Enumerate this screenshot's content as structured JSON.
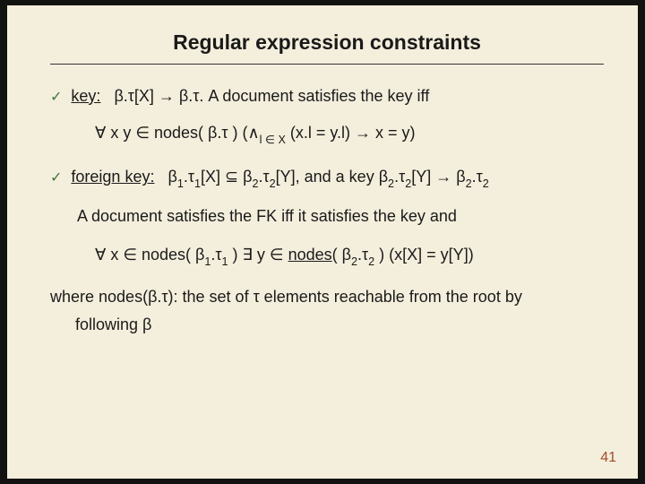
{
  "slide": {
    "title": "Regular expression constraints",
    "page_number": "41",
    "bullet1": {
      "label": "key:",
      "expr": "β.τ[X]  →  β.τ.   A document satisfies the key iff"
    },
    "formula1": "∀ x  y  ∈ nodes( β.τ )   (∧",
    "formula1_sub": "l ∈ X",
    "formula1_tail": "  (x.l = y.l) →  x = y)",
    "bullet2": {
      "label": "foreign key:",
      "expr_a": "β",
      "expr_a2": "1",
      "expr_b": ".τ",
      "expr_b2": "1",
      "expr_c": "[X]  ⊆  β",
      "expr_c2": "2",
      "expr_d": ".τ",
      "expr_d2": "2",
      "expr_e": "[Y], and a key  β",
      "expr_e2": "2",
      "expr_f": ".τ",
      "expr_f2": "2",
      "expr_g": "[Y]  →  β",
      "expr_g2": "2",
      "expr_h": ".τ",
      "expr_h2": "2"
    },
    "sub2": "A document satisfies the FK  iff  it satisfies the key and",
    "formula2_a": "∀ x ∈ nodes(  β",
    "formula2_a2": "1",
    "formula2_b": ".τ",
    "formula2_b2": "1",
    "formula2_c": " )  ∃ y  ∈ ",
    "formula2_d": "nodes",
    "formula2_e": "(  β",
    "formula2_e2": "2",
    "formula2_f": ".τ",
    "formula2_f2": "2",
    "formula2_g": " )  (x[X] = y[Y])",
    "note1": "where nodes(β.τ): the set of τ elements reachable from the root by",
    "note2": "following β"
  }
}
